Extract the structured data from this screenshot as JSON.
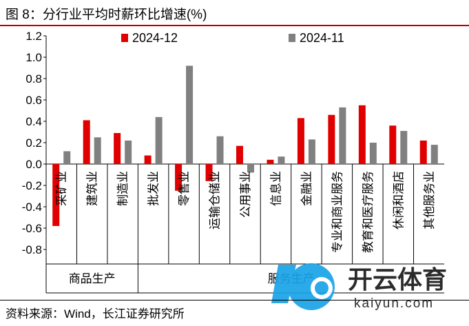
{
  "title": "图 8：分行业平均时薪环比增速(%)",
  "source": "资料来源：Wind，长江证券研究所",
  "watermark": {
    "brand": "开云体育",
    "url": "kaiyun.com"
  },
  "chart_data": {
    "type": "bar",
    "title": "图 8：分行业平均时薪环比增速(%)",
    "xlabel": "",
    "ylabel": "",
    "ylim": [
      -1.0,
      1.2
    ],
    "yticks": [
      -0.8,
      -0.6,
      -0.4,
      -0.2,
      0.0,
      0.2,
      0.4,
      0.6,
      0.8,
      1.0,
      1.2
    ],
    "ytick_labels": [
      "-0.8",
      "-0.6",
      "-0.4",
      "-0.2",
      "0.0",
      "0.2",
      "0.4",
      "0.6",
      "0.8",
      "1.0",
      "1.2"
    ],
    "grid": false,
    "legend": "top",
    "categories": [
      "采矿业",
      "建筑业",
      "制造业",
      "批发业",
      "零售业",
      "运输仓储业",
      "公用事业",
      "信息业",
      "金融业",
      "专业和商业服务",
      "教育和医疗服务",
      "休闲和酒店",
      "其他服务业"
    ],
    "groups": [
      {
        "label": "商品生产",
        "start": 0,
        "end": 2
      },
      {
        "label": "服务生产",
        "start": 3,
        "end": 12
      }
    ],
    "series": [
      {
        "name": "2024-12",
        "color": "#e00000",
        "values": [
          -0.58,
          0.41,
          0.29,
          0.08,
          -0.25,
          -0.16,
          0.17,
          0.04,
          0.43,
          0.46,
          0.55,
          0.36,
          0.22
        ]
      },
      {
        "name": "2024-11",
        "color": "#808080",
        "values": [
          0.12,
          0.25,
          0.22,
          0.44,
          0.92,
          0.26,
          -0.08,
          0.07,
          0.23,
          0.53,
          0.2,
          0.31,
          0.18
        ]
      }
    ]
  }
}
